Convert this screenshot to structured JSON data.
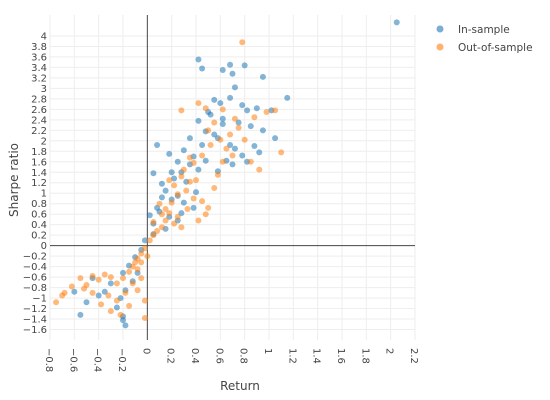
{
  "chart_data": {
    "type": "scatter",
    "title": "",
    "xlabel": "Return",
    "ylabel": "Sharpe ratio",
    "xlim": [
      -0.8,
      2.2
    ],
    "ylim": [
      -1.8,
      4.4
    ],
    "xticks": [
      "−0.8",
      "−0.6",
      "−0.4",
      "−0.2",
      "0",
      "0.2",
      "0.4",
      "0.6",
      "0.8",
      "1",
      "1.2",
      "1.4",
      "1.6",
      "1.8",
      "2",
      "2.2"
    ],
    "xtick_values": [
      -0.8,
      -0.6,
      -0.4,
      -0.2,
      0,
      0.2,
      0.4,
      0.6,
      0.8,
      1,
      1.2,
      1.4,
      1.6,
      1.8,
      2,
      2.2
    ],
    "yticks": [
      "−1.6",
      "−1.4",
      "−1.2",
      "−1",
      "−0.8",
      "−0.6",
      "−0.4",
      "−0.2",
      "0",
      "0.2",
      "0.4",
      "0.6",
      "0.8",
      "1",
      "1.2",
      "1.4",
      "1.6",
      "1.8",
      "2",
      "2.2",
      "2.4",
      "2.6",
      "2.8",
      "3",
      "3.2",
      "3.4",
      "3.6",
      "3.8",
      "4"
    ],
    "ytick_values": [
      -1.6,
      -1.4,
      -1.2,
      -1,
      -0.8,
      -0.6,
      -0.4,
      -0.2,
      0,
      0.2,
      0.4,
      0.6,
      0.8,
      1,
      1.2,
      1.4,
      1.6,
      1.8,
      2,
      2.2,
      2.4,
      2.6,
      2.8,
      3,
      3.2,
      3.4,
      3.6,
      3.8,
      4
    ],
    "grid": true,
    "legend_position": "top-right",
    "series": [
      {
        "name": "In-sample",
        "color": "#1f77b4",
        "points": [
          [
            2.05,
            4.26
          ],
          [
            1.15,
            2.82
          ],
          [
            0.8,
            3.44
          ],
          [
            0.68,
            3.45
          ],
          [
            0.62,
            3.35
          ],
          [
            0.7,
            3.28
          ],
          [
            0.95,
            3.22
          ],
          [
            0.42,
            3.55
          ],
          [
            0.45,
            3.38
          ],
          [
            0.72,
            3.02
          ],
          [
            0.68,
            2.82
          ],
          [
            0.78,
            2.68
          ],
          [
            0.55,
            2.78
          ],
          [
            0.6,
            2.72
          ],
          [
            0.5,
            2.55
          ],
          [
            0.82,
            2.58
          ],
          [
            0.9,
            2.62
          ],
          [
            0.52,
            2.5
          ],
          [
            0.42,
            2.38
          ],
          [
            0.62,
            2.32
          ],
          [
            0.75,
            2.35
          ],
          [
            0.85,
            2.28
          ],
          [
            0.95,
            2.2
          ],
          [
            1.05,
            2.05
          ],
          [
            0.48,
            2.18
          ],
          [
            0.58,
            2.05
          ],
          [
            0.68,
            1.92
          ],
          [
            0.72,
            1.85
          ],
          [
            0.78,
            1.72
          ],
          [
            0.65,
            1.62
          ],
          [
            0.88,
            1.9
          ],
          [
            0.92,
            1.78
          ],
          [
            0.35,
            2.05
          ],
          [
            0.45,
            1.92
          ],
          [
            0.38,
            1.7
          ],
          [
            0.3,
            1.82
          ],
          [
            0.25,
            1.6
          ],
          [
            0.2,
            1.4
          ],
          [
            0.08,
            1.92
          ],
          [
            0.18,
            1.75
          ],
          [
            0.22,
            1.28
          ],
          [
            0.28,
            1.4
          ],
          [
            0.32,
            1.22
          ],
          [
            0.15,
            1.05
          ],
          [
            0.12,
            0.92
          ],
          [
            0.05,
            1.38
          ],
          [
            0.08,
            0.72
          ],
          [
            0.02,
            0.58
          ],
          [
            0.1,
            0.65
          ],
          [
            0.18,
            0.55
          ],
          [
            0.25,
            0.48
          ],
          [
            0.3,
            0.82
          ],
          [
            0.35,
            1.55
          ],
          [
            0.42,
            1.45
          ],
          [
            0.4,
            1.02
          ],
          [
            0.2,
            0.88
          ],
          [
            0.15,
            0.32
          ],
          [
            0.05,
            0.22
          ],
          [
            -0.02,
            0.1
          ],
          [
            -0.05,
            -0.08
          ],
          [
            -0.1,
            -0.22
          ],
          [
            -0.15,
            -0.38
          ],
          [
            -0.2,
            -0.52
          ],
          [
            -0.12,
            -0.68
          ],
          [
            -0.18,
            -0.85
          ],
          [
            -0.22,
            -1.0
          ],
          [
            -0.25,
            -1.18
          ],
          [
            -0.2,
            -1.35
          ],
          [
            -0.18,
            -1.52
          ],
          [
            -0.2,
            -1.42
          ],
          [
            -0.3,
            -0.72
          ],
          [
            -0.35,
            -0.88
          ],
          [
            -0.5,
            -1.08
          ],
          [
            -0.55,
            -1.32
          ],
          [
            -0.45,
            -0.62
          ],
          [
            -0.4,
            -0.95
          ],
          [
            -0.6,
            -0.88
          ],
          [
            -0.08,
            -0.52
          ],
          [
            0.55,
            2.12
          ],
          [
            0.62,
            2.42
          ],
          [
            0.48,
            1.62
          ],
          [
            0.12,
            1.18
          ],
          [
            0.25,
            0.95
          ],
          [
            0.58,
            1.42
          ],
          [
            0.7,
            1.55
          ],
          [
            1.02,
            2.58
          ],
          [
            0.82,
            1.6
          ],
          [
            0.38,
            0.72
          ],
          [
            0.28,
            0.62
          ],
          [
            0.05,
            0.42
          ]
        ]
      },
      {
        "name": "Out-of-sample",
        "color": "#ff7f0e",
        "points": [
          [
            0.78,
            3.88
          ],
          [
            1.05,
            2.58
          ],
          [
            1.1,
            1.78
          ],
          [
            0.98,
            2.55
          ],
          [
            0.88,
            2.45
          ],
          [
            0.92,
            1.45
          ],
          [
            0.75,
            2.25
          ],
          [
            0.68,
            2.12
          ],
          [
            0.6,
            2.02
          ],
          [
            0.55,
            2.35
          ],
          [
            0.48,
            2.62
          ],
          [
            0.42,
            2.72
          ],
          [
            0.5,
            2.2
          ],
          [
            0.52,
            1.92
          ],
          [
            0.45,
            1.72
          ],
          [
            0.38,
            1.58
          ],
          [
            0.35,
            1.68
          ],
          [
            0.3,
            1.45
          ],
          [
            0.28,
            1.32
          ],
          [
            0.22,
            1.15
          ],
          [
            0.25,
            0.98
          ],
          [
            0.2,
            0.82
          ],
          [
            0.18,
            0.62
          ],
          [
            0.15,
            0.48
          ],
          [
            0.12,
            0.35
          ],
          [
            0.08,
            0.28
          ],
          [
            0.05,
            0.2
          ],
          [
            0.02,
            0.1
          ],
          [
            0.28,
            2.58
          ],
          [
            0.32,
            1.05
          ],
          [
            0.4,
            1.25
          ],
          [
            0.45,
            0.85
          ],
          [
            0.48,
            0.6
          ],
          [
            0.5,
            0.72
          ],
          [
            0.38,
            0.9
          ],
          [
            0.33,
            0.7
          ],
          [
            0.25,
            0.55
          ],
          [
            0.1,
            0.8
          ],
          [
            0.12,
            0.6
          ],
          [
            0.15,
            0.7
          ],
          [
            0.05,
            0.45
          ],
          [
            -0.02,
            -0.05
          ],
          [
            -0.05,
            -0.15
          ],
          [
            -0.08,
            -0.25
          ],
          [
            -0.1,
            -0.32
          ],
          [
            -0.12,
            -0.4
          ],
          [
            -0.15,
            -0.5
          ],
          [
            -0.2,
            -0.62
          ],
          [
            -0.25,
            -0.72
          ],
          [
            -0.3,
            -0.6
          ],
          [
            -0.35,
            -0.55
          ],
          [
            -0.4,
            -0.65
          ],
          [
            -0.45,
            -0.58
          ],
          [
            -0.5,
            -0.75
          ],
          [
            -0.55,
            -0.62
          ],
          [
            -0.62,
            -0.78
          ],
          [
            -0.7,
            -0.95
          ],
          [
            -0.75,
            -1.08
          ],
          [
            -0.68,
            -0.9
          ],
          [
            -0.52,
            -0.82
          ],
          [
            -0.45,
            -0.9
          ],
          [
            -0.38,
            -1.12
          ],
          [
            -0.3,
            -1.25
          ],
          [
            -0.25,
            -1.05
          ],
          [
            -0.18,
            -0.9
          ],
          [
            -0.12,
            -0.72
          ],
          [
            -0.08,
            -0.85
          ],
          [
            -0.05,
            -0.62
          ],
          [
            -0.02,
            -1.05
          ],
          [
            -0.02,
            -1.38
          ],
          [
            -0.22,
            -1.32
          ],
          [
            -0.15,
            -1.15
          ],
          [
            -0.32,
            -0.95
          ],
          [
            -0.08,
            -0.45
          ],
          [
            -0.05,
            -0.32
          ],
          [
            0.0,
            -0.2
          ],
          [
            0.55,
            1.1
          ],
          [
            0.62,
            1.6
          ],
          [
            0.7,
            1.72
          ],
          [
            0.85,
            1.6
          ],
          [
            0.8,
            2.02
          ],
          [
            0.58,
            1.35
          ],
          [
            0.35,
            1.22
          ],
          [
            0.18,
            1.25
          ],
          [
            0.22,
            0.42
          ],
          [
            0.28,
            0.35
          ],
          [
            0.42,
            0.48
          ],
          [
            0.62,
            2.6
          ],
          [
            0.72,
            2.42
          ],
          [
            0.65,
            1.85
          ]
        ]
      }
    ]
  }
}
